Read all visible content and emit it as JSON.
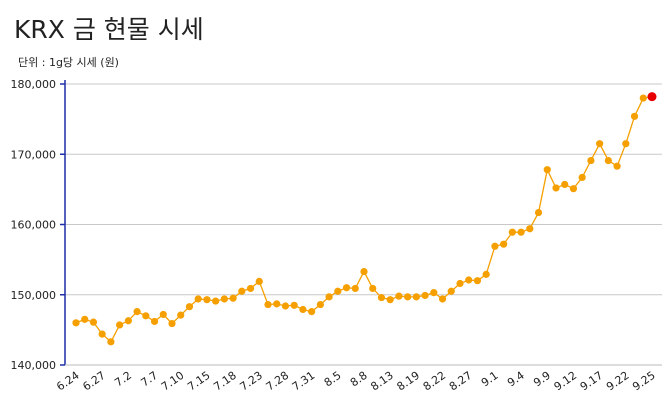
{
  "chart_data": {
    "type": "line",
    "title": "KRX 금 현물 시세",
    "subtitle": "단위 : 1g당 시세 (원)",
    "categories": [
      "6.24",
      null,
      null,
      "6.27",
      null,
      null,
      "7.2",
      null,
      null,
      "7.7",
      null,
      null,
      "7.10",
      null,
      null,
      "7.15",
      null,
      null,
      "7.18",
      null,
      null,
      "7.23",
      null,
      null,
      "7.28",
      null,
      null,
      "7.31",
      null,
      null,
      "8.5",
      null,
      null,
      "8.8",
      null,
      null,
      "8.13",
      null,
      null,
      "8.19",
      null,
      null,
      "8.22",
      null,
      null,
      "8.27",
      null,
      null,
      "9.1",
      null,
      null,
      "9.4",
      null,
      null,
      "9.9",
      null,
      null,
      "9.12",
      null,
      null,
      "9.17",
      null,
      null,
      "9.22",
      null,
      null,
      "9.25"
    ],
    "values": [
      146000,
      146500,
      146100,
      144400,
      143300,
      145700,
      146300,
      147600,
      147000,
      146200,
      147200,
      145900,
      147100,
      148300,
      149400,
      149300,
      149100,
      149400,
      149500,
      150500,
      150900,
      151900,
      148600,
      148700,
      148400,
      148500,
      147900,
      147600,
      148600,
      149700,
      150500,
      151000,
      150900,
      153300,
      150900,
      149600,
      149300,
      149800,
      149700,
      149700,
      149900,
      150300,
      149400,
      150500,
      151600,
      152100,
      152000,
      152900,
      156900,
      157200,
      158900,
      158900,
      159400,
      161700,
      167800,
      165200,
      165700,
      165100,
      166700,
      169100,
      171500,
      169100,
      168300,
      171500,
      175400,
      178000,
      178200
    ],
    "color": "#f5a000",
    "last_point_color": "#e80000",
    "axis_color": "#1c2fa8",
    "ylim": [
      140000,
      180000
    ],
    "yticks": [
      {
        "value": 140000,
        "label": "140,000"
      },
      {
        "value": 150000,
        "label": "150,000"
      },
      {
        "value": 160000,
        "label": "160,000"
      },
      {
        "value": 170000,
        "label": "170,000"
      },
      {
        "value": 180000,
        "label": "180,000"
      }
    ],
    "grid": true
  }
}
